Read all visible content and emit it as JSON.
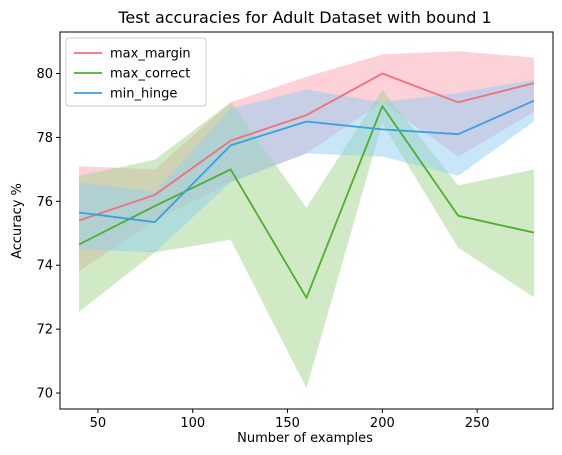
{
  "chart_data": {
    "type": "line",
    "title": "Test accuracies for Adult Dataset with bound 1",
    "xlabel": "Number of examples",
    "ylabel": "Accuracy %",
    "x": [
      40,
      80,
      120,
      160,
      200,
      240,
      280
    ],
    "xlim": [
      30,
      290
    ],
    "ylim": [
      69.5,
      81.3
    ],
    "xticks": [
      50,
      100,
      150,
      200,
      250
    ],
    "yticks": [
      70,
      72,
      74,
      76,
      78,
      80
    ],
    "grid": false,
    "legend_position": "upper-left",
    "series": [
      {
        "name": "max_margin",
        "color": "#f0717a",
        "band_color": "#f9a3b2",
        "values": [
          75.4,
          76.2,
          77.9,
          78.7,
          80.0,
          79.1,
          79.7
        ],
        "band_upper": [
          77.1,
          77.0,
          79.1,
          79.9,
          80.6,
          80.7,
          80.5
        ],
        "band_lower": [
          73.8,
          75.4,
          76.6,
          77.5,
          79.1,
          77.4,
          78.8
        ]
      },
      {
        "name": "max_correct",
        "color": "#4daf2e",
        "band_color": "#a3d68e",
        "values": [
          74.65,
          75.85,
          77.0,
          72.98,
          78.98,
          75.55,
          75.02
        ],
        "band_upper": [
          76.8,
          77.3,
          79.1,
          75.8,
          79.5,
          76.5,
          77.0
        ],
        "band_lower": [
          72.55,
          74.4,
          74.8,
          70.15,
          78.45,
          74.55,
          73.0
        ]
      },
      {
        "name": "min_hinge",
        "color": "#3aa0e0",
        "band_color": "#8fcdf2",
        "values": [
          75.65,
          75.35,
          77.75,
          78.5,
          78.25,
          78.1,
          79.15
        ],
        "band_upper": [
          76.6,
          76.3,
          78.9,
          79.5,
          79.1,
          79.4,
          79.8
        ],
        "band_lower": [
          74.5,
          74.4,
          76.6,
          77.5,
          77.4,
          76.8,
          78.5
        ]
      }
    ]
  }
}
